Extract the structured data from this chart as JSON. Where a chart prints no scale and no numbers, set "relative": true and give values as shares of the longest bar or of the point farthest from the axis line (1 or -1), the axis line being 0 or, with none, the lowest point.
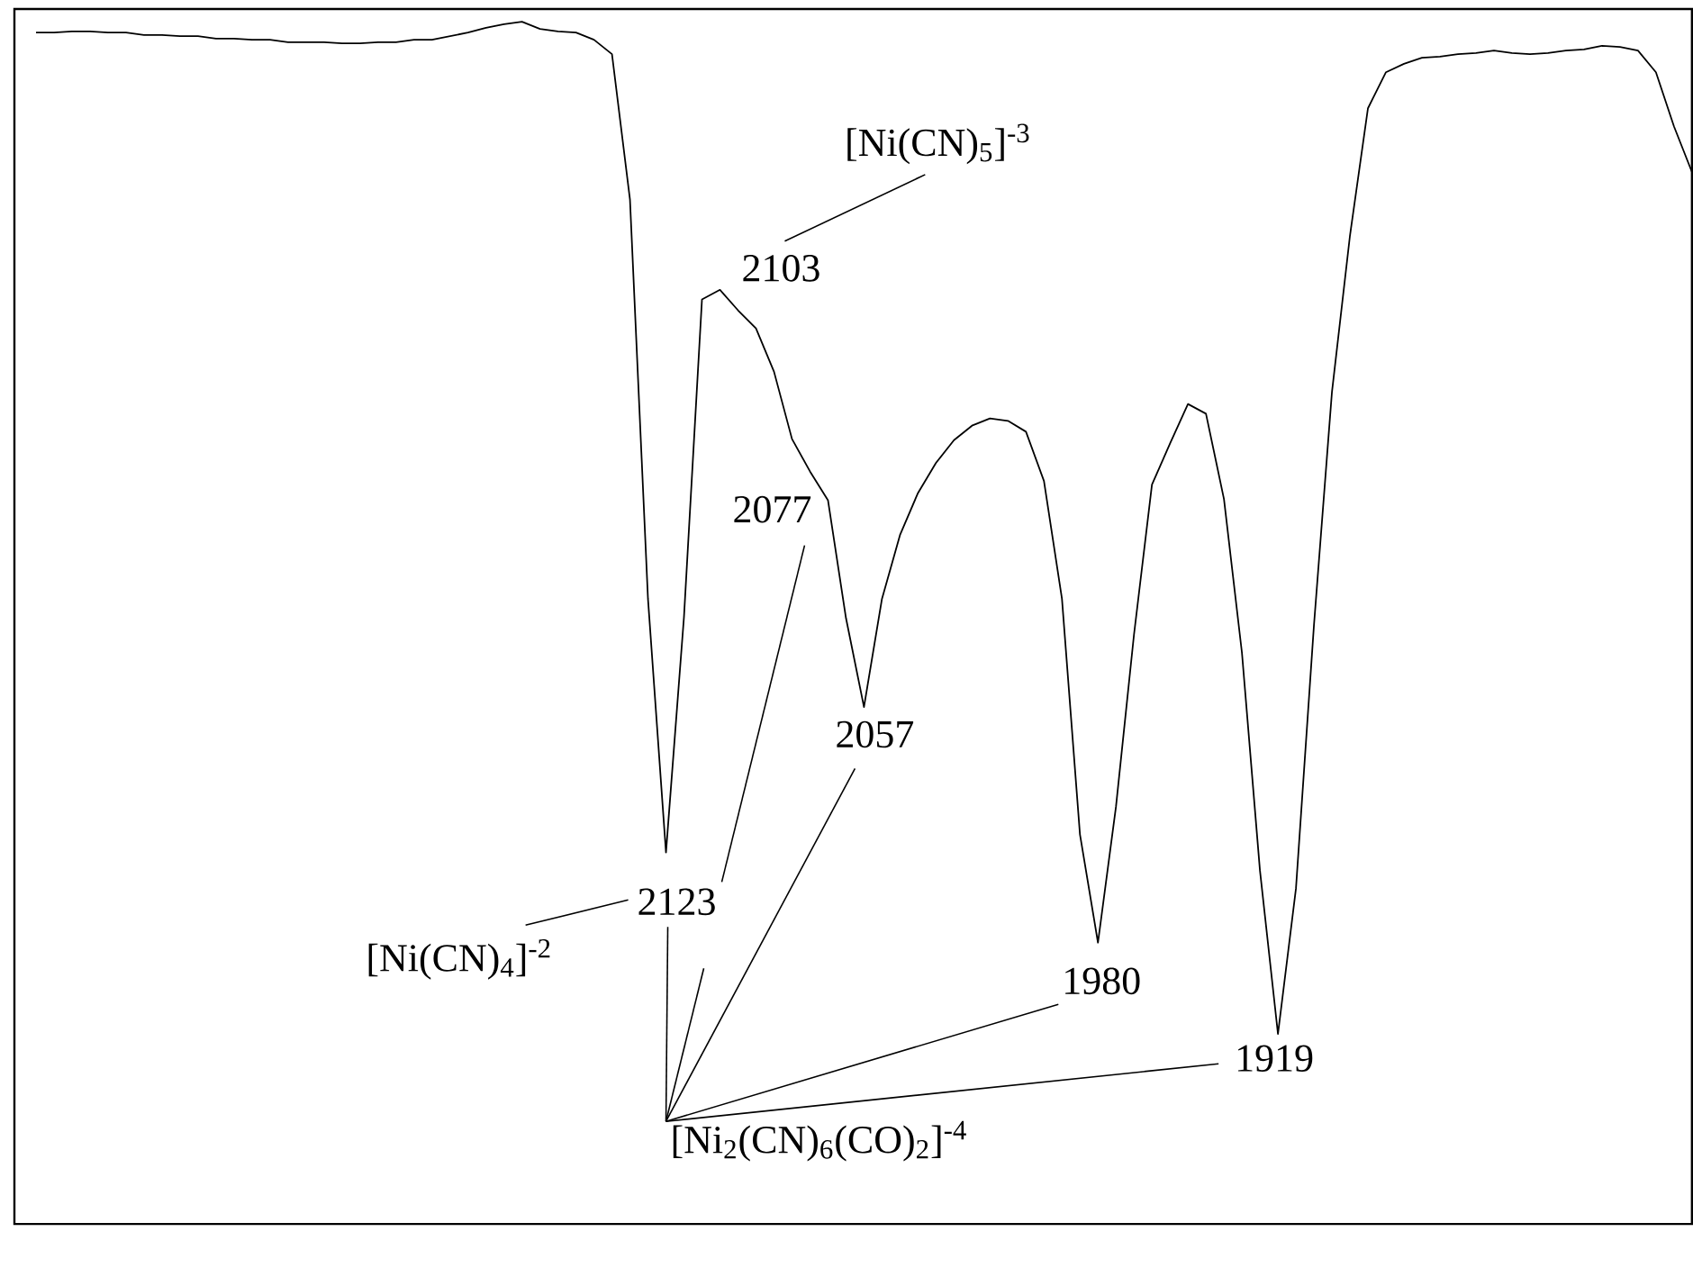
{
  "chart_data": {
    "type": "line",
    "relative": true,
    "categories": [
      null,
      null,
      null,
      null,
      null,
      null,
      null,
      null,
      null,
      null,
      null,
      null,
      null,
      null,
      null,
      null,
      null,
      null,
      null,
      null,
      null,
      null,
      null,
      null,
      null,
      null,
      null,
      null,
      null,
      null,
      null,
      null,
      null,
      null,
      null,
      null,
      null,
      null,
      null,
      null,
      null,
      null,
      null,
      null,
      null,
      null,
      null,
      null,
      null,
      null,
      null,
      null,
      null,
      null,
      null,
      null,
      null,
      null,
      null,
      null,
      null,
      null,
      null,
      null,
      null,
      null,
      null,
      null,
      null,
      null,
      null,
      null,
      null,
      null,
      null,
      null,
      null,
      null,
      null,
      null,
      null,
      null,
      null,
      null,
      null,
      null,
      null,
      null,
      null,
      null,
      null,
      null,
      null
    ],
    "series": [
      {
        "color": "#000000",
        "values": [
          0.991,
          0.991,
          0.992,
          0.992,
          0.991,
          0.991,
          0.989,
          0.989,
          0.988,
          0.988,
          0.986,
          0.986,
          0.985,
          0.985,
          0.983,
          0.983,
          0.983,
          0.982,
          0.982,
          0.983,
          0.983,
          0.985,
          0.985,
          0.988,
          0.991,
          0.995,
          0.998,
          1.0,
          0.994,
          0.992,
          0.991,
          0.985,
          0.973,
          0.852,
          0.52,
          0.309,
          0.505,
          0.769,
          0.777,
          0.76,
          0.745,
          0.709,
          0.653,
          0.626,
          0.602,
          0.504,
          0.43,
          0.52,
          0.573,
          0.608,
          0.633,
          0.652,
          0.664,
          0.67,
          0.668,
          0.659,
          0.618,
          0.52,
          0.324,
          0.234,
          0.347,
          0.49,
          0.615,
          0.649,
          0.682,
          0.674,
          0.603,
          0.475,
          0.294,
          0.158,
          0.279,
          0.498,
          0.692,
          0.822,
          0.928,
          0.958,
          0.965,
          0.97,
          0.971,
          0.973,
          0.974,
          0.976,
          0.974,
          0.973,
          0.974,
          0.976,
          0.977,
          0.98,
          0.979,
          0.976,
          0.958,
          0.913,
          0.875
        ]
      }
    ],
    "annotations": [
      "2123",
      "2103",
      "2077",
      "2057",
      "1980",
      "1919",
      "[Ni(CN)$_{5}$]$^{-3}$",
      "[Ni(CN)$_{4}$]$^{-2}$",
      "[Ni$_{2}$(CN)$_{6}$(CO)$_{2}$]$^{-4}$"
    ]
  }
}
